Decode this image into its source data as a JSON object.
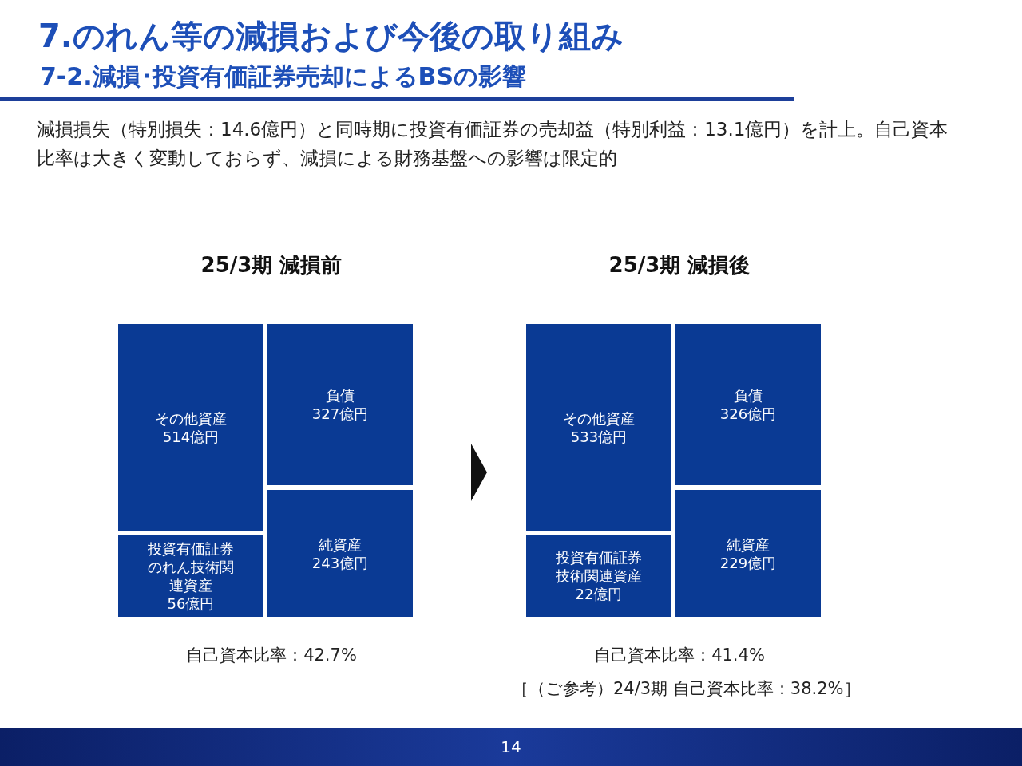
{
  "chart_data": [
    {
      "type": "other",
      "title": "7.のれん等の減損および今後の取り組み",
      "subtitle": "7-2.減損･投資有価証券売却によるBSの影響",
      "annotations": [
        "減損損失（特別損失：14.6億円）と同時期に投資有価証券の売却益（特別利益：13.1億円）を計上。自己資本比率は大きく変動しておらず、減損による財務基盤への影響は限定的",
        "14"
      ]
    },
    {
      "type": "other",
      "title": "25/3期 減損前",
      "categories": [
        "その他資産",
        "投資有価証券のれん技術関連資産",
        "負債",
        "純資産"
      ],
      "values": [
        514,
        56,
        327,
        243
      ],
      "value_labels": [
        "514億円",
        "56億円",
        "327億円",
        "243億円"
      ],
      "colors": [
        "#0a3a94",
        "#0a3a94",
        "#0a3a94",
        "#0a3a94"
      ],
      "annotations": [
        "自己資本比率：42.7%"
      ]
    },
    {
      "type": "other",
      "title": "25/3期 減損後",
      "categories": [
        "その他資産",
        "投資有価証券技術関連資産",
        "負債",
        "純資産"
      ],
      "values": [
        533,
        22,
        326,
        229
      ],
      "value_labels": [
        "533億円",
        "22億円",
        "326億円",
        "229億円"
      ],
      "colors": [
        "#0a3a94",
        "#0a3a94",
        "#0a3a94",
        "#0a3a94"
      ],
      "annotations": [
        "自己資本比率：41.4%",
        "［（ご参考）24/3期 自己資本比率：38.2%］"
      ]
    }
  ]
}
